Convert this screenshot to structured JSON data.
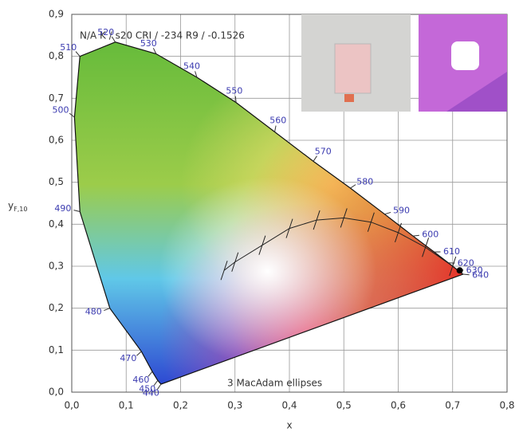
{
  "chart_data": {
    "type": "chromaticity",
    "annotation": "N/A K / s20 CRI / -234 R9 / -0.1526",
    "ellipse_note": "3 MacAdam ellipses",
    "x_label": "x",
    "y_label": "y",
    "y_label_sub": "F,10",
    "xlim": [
      0,
      0.8
    ],
    "ylim": [
      0,
      0.9
    ],
    "xticks": [
      {
        "value": 0,
        "label": "0,0"
      },
      {
        "value": 0.1,
        "label": "0,1"
      },
      {
        "value": 0.2,
        "label": "0,2"
      },
      {
        "value": 0.3,
        "label": "0,3"
      },
      {
        "value": 0.4,
        "label": "0,4"
      },
      {
        "value": 0.5,
        "label": "0,5"
      },
      {
        "value": 0.6,
        "label": "0,6"
      },
      {
        "value": 0.7,
        "label": "0,7"
      },
      {
        "value": 0.8,
        "label": "0,8"
      }
    ],
    "yticks": [
      {
        "value": 0,
        "label": "0,0"
      },
      {
        "value": 0.1,
        "label": "0,1"
      },
      {
        "value": 0.2,
        "label": "0,2"
      },
      {
        "value": 0.3,
        "label": "0,3"
      },
      {
        "value": 0.4,
        "label": "0,4"
      },
      {
        "value": 0.5,
        "label": "0,5"
      },
      {
        "value": 0.6,
        "label": "0,6"
      },
      {
        "value": 0.7,
        "label": "0,7"
      },
      {
        "value": 0.8,
        "label": "0,8"
      },
      {
        "value": 0.9,
        "label": "0,9"
      }
    ],
    "grid": true,
    "spectral_locus": {
      "wavelengths": [
        440,
        450,
        460,
        470,
        480,
        490,
        500,
        510,
        520,
        530,
        540,
        550,
        560,
        570,
        580,
        590,
        600,
        610,
        620,
        630,
        640
      ],
      "x": [
        0.164,
        0.158,
        0.148,
        0.128,
        0.07,
        0.015,
        0.005,
        0.015,
        0.08,
        0.155,
        0.23,
        0.302,
        0.373,
        0.444,
        0.512,
        0.575,
        0.627,
        0.666,
        0.692,
        0.708,
        0.719
      ],
      "y": [
        0.019,
        0.028,
        0.049,
        0.097,
        0.2,
        0.43,
        0.655,
        0.8,
        0.834,
        0.806,
        0.75,
        0.69,
        0.62,
        0.55,
        0.486,
        0.424,
        0.372,
        0.334,
        0.308,
        0.292,
        0.281
      ],
      "label_color": "#3b3bb0"
    },
    "planckian_locus": {
      "x": [
        0.28,
        0.3,
        0.35,
        0.4,
        0.45,
        0.5,
        0.55,
        0.6,
        0.65,
        0.7
      ],
      "y": [
        0.29,
        0.31,
        0.35,
        0.39,
        0.41,
        0.415,
        0.405,
        0.38,
        0.345,
        0.3
      ],
      "color": "#222222"
    },
    "point": {
      "x": 0.713,
      "y": 0.29,
      "color": "#000000"
    }
  }
}
